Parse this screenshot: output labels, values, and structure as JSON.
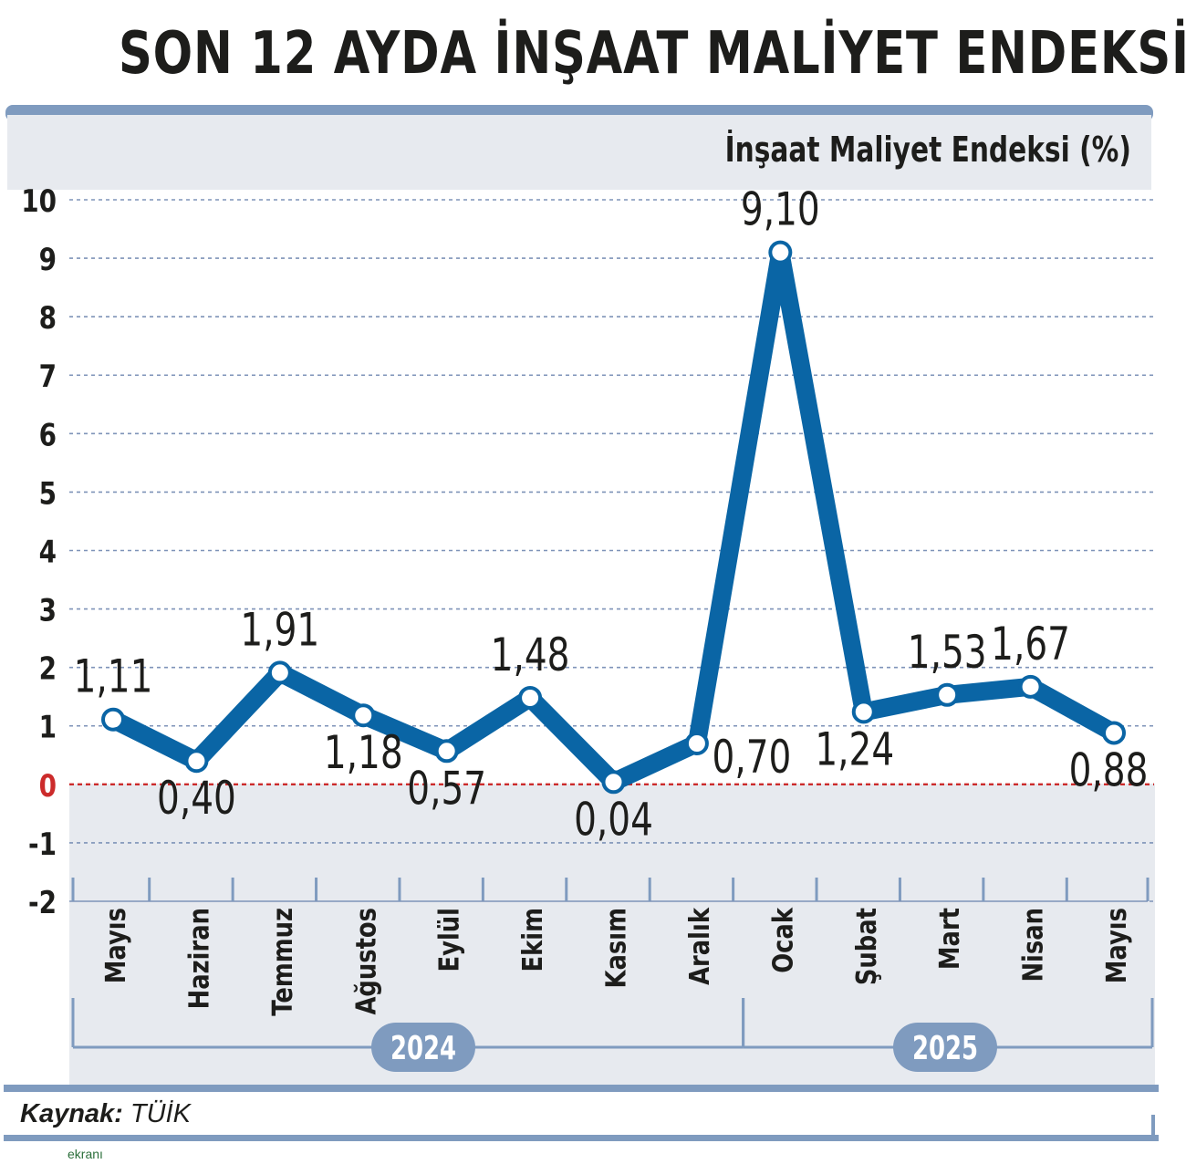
{
  "header": {
    "title": "SON 12 AYDA İNŞAAT MALİYET ENDEKSİ",
    "unit_label": "İnşaat Maliyet Endeksi (%)"
  },
  "footer": {
    "source_label": "Kaynak:",
    "source_value": "TÜİK",
    "watermark": "ekranı"
  },
  "colors": {
    "line": "#0a65a5",
    "frame": "#7f9bbf",
    "panel": "#e7eaef",
    "grid": "#7e93b8",
    "zero_line": "#cc2b2b",
    "year_pill": "#7f9bbf"
  },
  "chart_data": {
    "type": "line",
    "title": "SON 12 AYDA İNŞAAT MALİYET ENDEKSİ",
    "ylabel": "İnşaat Maliyet Endeksi (%)",
    "xlabel": "",
    "categories": [
      "Mayıs",
      "Haziran",
      "Temmuz",
      "Ağustos",
      "Eylül",
      "Ekim",
      "Kasım",
      "Aralık",
      "Ocak",
      "Şubat",
      "Mart",
      "Nisan",
      "Mayıs"
    ],
    "series": [
      {
        "values": [
          1.11,
          0.4,
          1.91,
          1.18,
          0.57,
          1.48,
          0.04,
          0.7,
          9.1,
          1.24,
          1.53,
          1.67,
          0.88
        ],
        "labels": [
          "1,11",
          "0,40",
          "1,91",
          "1,18",
          "0,57",
          "1,48",
          "0,04",
          "0,70",
          "9,10",
          "1,24",
          "1,53",
          "1,67",
          "0,88"
        ]
      }
    ],
    "ylim": [
      -2,
      10
    ],
    "yticks": [
      "10",
      "9",
      "8",
      "7",
      "6",
      "5",
      "4",
      "3",
      "2",
      "1",
      "0",
      "-1",
      "-2"
    ],
    "year_groups": [
      {
        "label": "2024",
        "from": 0,
        "to": 7
      },
      {
        "label": "2025",
        "from": 8,
        "to": 12
      }
    ],
    "grid": true,
    "legend": "none"
  }
}
